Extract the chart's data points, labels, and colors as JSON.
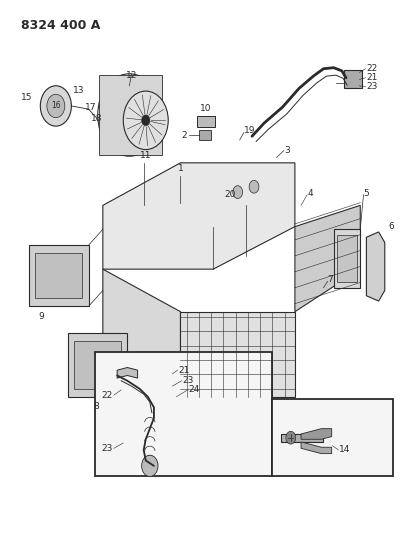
{
  "title": "8324 400 A",
  "bg_color": "#ffffff",
  "line_color": "#2a2a2a",
  "fig_width": 4.1,
  "fig_height": 5.33,
  "dpi": 100
}
